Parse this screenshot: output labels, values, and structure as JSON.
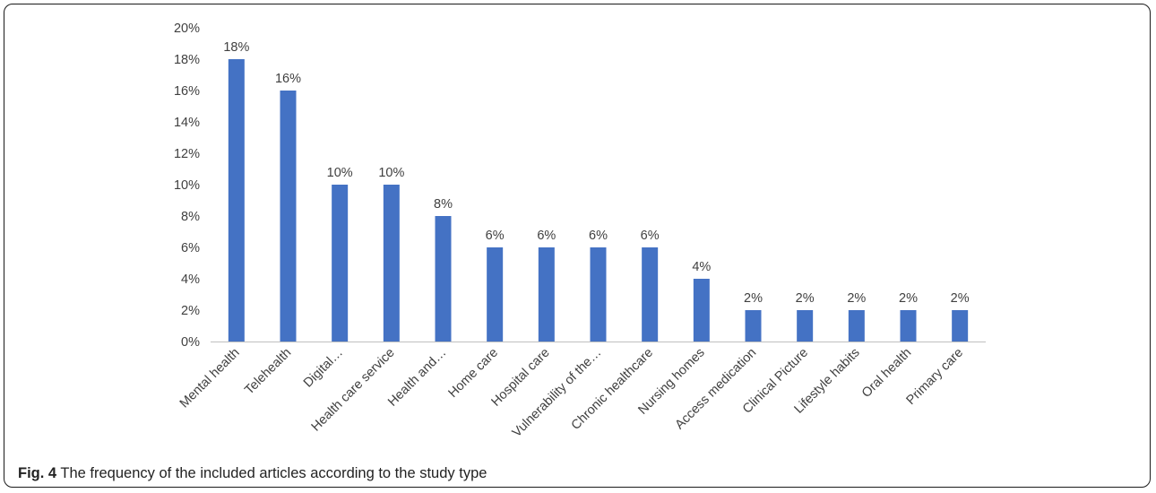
{
  "caption": {
    "label": "Fig. 4",
    "text": "The frequency of the included articles according to the study type"
  },
  "colors": {
    "bar": "#4472c4",
    "axis": "#bfbfbf",
    "text": "#404040"
  },
  "chart_data": {
    "type": "bar",
    "title": "",
    "xlabel": "",
    "ylabel": "",
    "ylim": [
      0,
      20
    ],
    "yticks": [
      0,
      2,
      4,
      6,
      8,
      10,
      12,
      14,
      16,
      18,
      20
    ],
    "ytick_labels": [
      "0%",
      "2%",
      "4%",
      "6%",
      "8%",
      "10%",
      "12%",
      "14%",
      "16%",
      "18%",
      "20%"
    ],
    "grid": false,
    "legend": "none",
    "categories": [
      "Mental health",
      "Telehealth",
      "Digital…",
      "Health care service",
      "Health and…",
      "Home care",
      "Hospital care",
      "Vulnerability of the…",
      "Chronic healthcare",
      "Nursing homes",
      "Access medication",
      "Clinical Picture",
      "Lifestyle habits",
      "Oral health",
      "Primary care"
    ],
    "values": [
      18,
      16,
      10,
      10,
      8,
      6,
      6,
      6,
      6,
      4,
      2,
      2,
      2,
      2,
      2
    ],
    "data_labels": [
      "18%",
      "16%",
      "10%",
      "10%",
      "8%",
      "6%",
      "6%",
      "6%",
      "6%",
      "4%",
      "2%",
      "2%",
      "2%",
      "2%",
      "2%"
    ]
  }
}
